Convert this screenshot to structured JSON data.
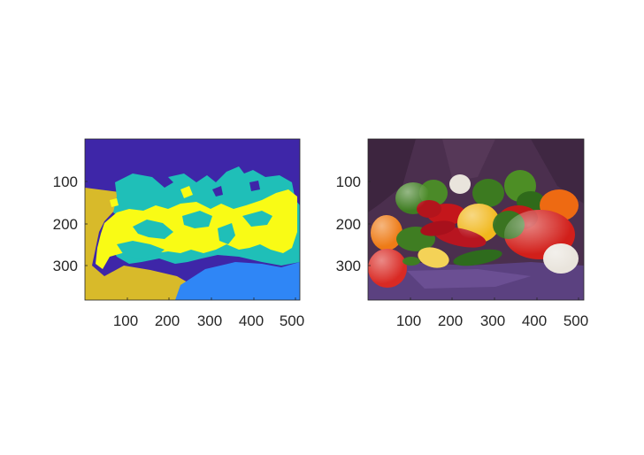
{
  "figure": {
    "background": "#ffffff",
    "panels": [
      {
        "kind": "label-map",
        "x_ticks": [],
        "y_ticks": [
          "100",
          "200",
          "300"
        ],
        "colors": {
          "background": "#3e26a8",
          "cyan_region": "#1fbfb8",
          "yellow_region": "#f9fb15",
          "olive_region": "#d8ba2a",
          "blue_region": "#2f86f6"
        },
        "tick_icon": "axis-tick"
      },
      {
        "kind": "photo",
        "subject": "peppers",
        "x_ticks": [
          "100",
          "200",
          "300",
          "400",
          "500"
        ],
        "y_ticks": [
          "100",
          "200",
          "300"
        ],
        "colors": {
          "backdrop": "#4b2f4e",
          "cloth": "#5b4180",
          "red_pepper": "#d21f1a",
          "green_pepper": "#3f7d22",
          "yellow_pepper": "#f1b81d",
          "orange_pepper": "#ee6a12",
          "garlic": "#e9e4dc"
        }
      }
    ]
  }
}
